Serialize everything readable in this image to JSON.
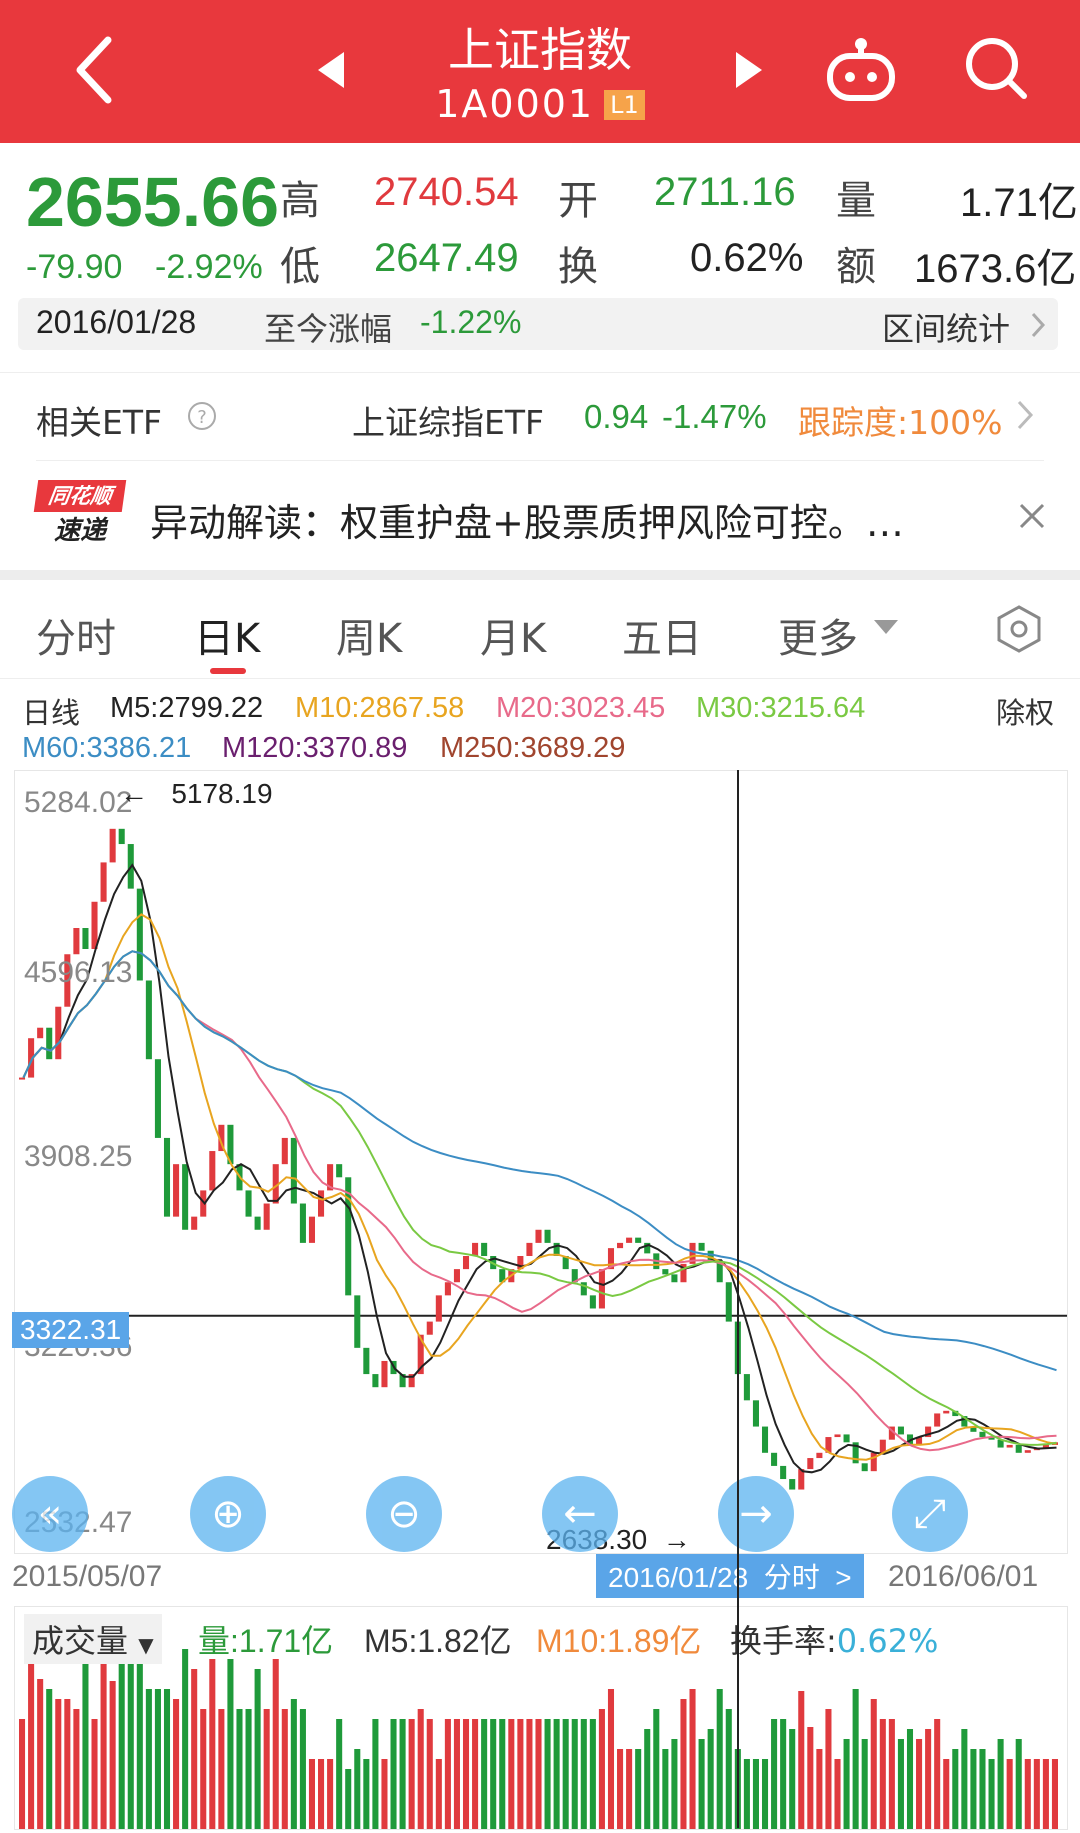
{
  "header": {
    "back_icon": "chevron-left-icon",
    "prev_icon": "triangle-left-icon",
    "title": "上证指数",
    "code": "1A0001",
    "level_badge": "L1",
    "next_icon": "triangle-right-icon",
    "robot_icon": "robot-icon",
    "search_icon": "search-icon",
    "color": "#e8383d"
  },
  "quote": {
    "price": "2655.66",
    "change": "-79.90",
    "change_pct": "-2.92%",
    "high_label": "高",
    "high": "2740.54",
    "open_label": "开",
    "open": "2711.16",
    "volume_label": "量",
    "volume": "1.71亿",
    "low_label": "低",
    "low": "2647.49",
    "turnover_label": "换",
    "turnover": "0.62%",
    "amount_label": "额",
    "amount": "1673.6亿"
  },
  "date_bar": {
    "date": "2016/01/28",
    "since_label": "至今涨幅",
    "since_value": "-1.22%",
    "stats_link": "区间统计"
  },
  "etf": {
    "label": "相关ETF",
    "help_icon": "question-circle-icon",
    "name": "上证综指ETF",
    "price": "0.94",
    "pct": "-1.47%",
    "tracking": "跟踪度:100%"
  },
  "news": {
    "logo_top": "同花顺",
    "logo_bottom": "速递",
    "text": "异动解读：权重护盘+股票质押风险可控。…",
    "close_icon": "close-icon"
  },
  "tabs": {
    "items": [
      "分时",
      "日K",
      "周K",
      "月K",
      "五日",
      "更多"
    ],
    "active": "日K",
    "settings_icon": "hexagon-settings-icon"
  },
  "ma_legend": {
    "period": "日线",
    "m5": "M5:2799.22",
    "m10": "M10:2867.58",
    "m20": "M20:3023.45",
    "m30": "M30:3215.64",
    "m60": "M60:3386.21",
    "m120": "M120:3370.89",
    "m250": "M250:3689.29",
    "adjust": "除权",
    "colors": {
      "m5": "#222222",
      "m10": "#e8a520",
      "m20": "#e86a8a",
      "m30": "#7ac943",
      "m60": "#3c8dc4",
      "m120": "#6a1f6e",
      "m250": "#a0452e"
    }
  },
  "chart_data": {
    "type": "candlestick",
    "x_start": "2015/05/07",
    "x_end": "2016/06/01",
    "cursor_date": "2016/01/28",
    "cursor_suffix": "分时",
    "y_ticks": [
      "5284.02",
      "4596.13",
      "3908.25",
      "3220.36",
      "2532.47"
    ],
    "ylim": [
      2532.47,
      5284.02
    ],
    "cursor_price": "3322.31",
    "max_annotation": "5178.19",
    "min_annotation": "2638.30",
    "close_series": [
      4230,
      4380,
      4420,
      4300,
      4500,
      4700,
      4800,
      4720,
      4900,
      5050,
      5178,
      5120,
      4950,
      4600,
      4300,
      4000,
      3700,
      3900,
      3650,
      3700,
      3800,
      3950,
      4050,
      3900,
      3800,
      3700,
      3650,
      3750,
      3900,
      4000,
      3750,
      3600,
      3700,
      3800,
      3900,
      3850,
      3400,
      3200,
      3100,
      3050,
      3150,
      3100,
      3050,
      3100,
      3250,
      3300,
      3400,
      3450,
      3500,
      3550,
      3600,
      3550,
      3500,
      3450,
      3500,
      3550,
      3600,
      3650,
      3600,
      3550,
      3500,
      3450,
      3400,
      3350,
      3500,
      3580,
      3600,
      3620,
      3600,
      3560,
      3500,
      3480,
      3450,
      3520,
      3600,
      3570,
      3530,
      3450,
      3300,
      3100,
      3000,
      2900,
      2800,
      2750,
      2700,
      2660,
      2738,
      2780,
      2800,
      2860,
      2870,
      2840,
      2760,
      2730,
      2800,
      2850,
      2900,
      2870,
      2830,
      2860,
      2900,
      2950,
      2960,
      2940,
      2900,
      2880,
      2860,
      2850,
      2820,
      2830,
      2800,
      2810,
      2820,
      2830,
      2840
    ]
  },
  "volume": {
    "selector": "成交量",
    "vol": "量:1.71亿",
    "m5": "M5:1.82亿",
    "m10": "M10:1.89亿",
    "turnover_rate_label": "换手率:",
    "turnover_rate_value": "0.62%"
  },
  "controls": [
    "rewind-icon",
    "zoom-in-icon",
    "zoom-out-icon",
    "scroll-left-icon",
    "scroll-right-icon",
    "expand-icon"
  ]
}
